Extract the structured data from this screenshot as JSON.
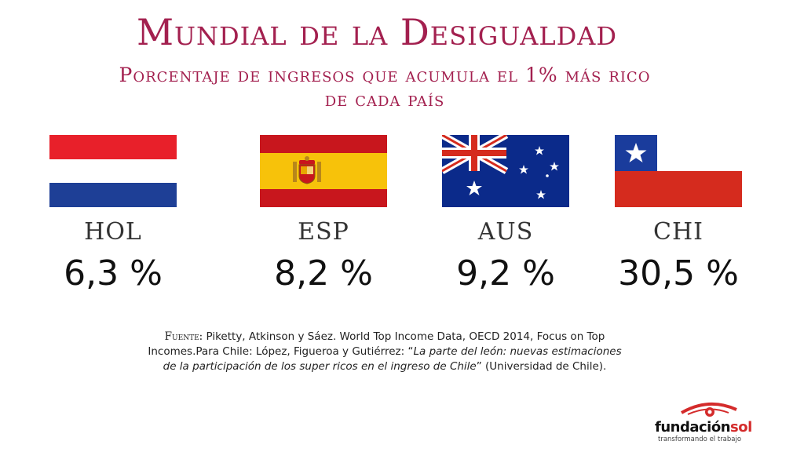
{
  "title": "Mundial de la Desigualdad",
  "subtitle_line1": "Porcentaje de ingresos que acumula el 1% más rico",
  "subtitle_line2": "de cada país",
  "countries": [
    {
      "code": "HOL",
      "value": "6,3 %",
      "flag_icon": "netherlands-flag-icon"
    },
    {
      "code": "ESP",
      "value": "8,2 %",
      "flag_icon": "spain-flag-icon"
    },
    {
      "code": "AUS",
      "value": "9,2 %",
      "flag_icon": "australia-flag-icon"
    },
    {
      "code": "CHI",
      "value": "30,5 %",
      "flag_icon": "chile-flag-icon"
    }
  ],
  "source": {
    "label": "Fuente:",
    "text1": " Piketty, Atkinson y Sáez. World Top Income Data, OECD 2014, Focus on Top Incomes.Para Chile: López, Figueroa y Gutiérrez: “",
    "italic": "La parte del león: nuevas estimaciones de la participación de los super ricos en el ingreso de Chile",
    "text2": "” (Universidad de Chile)."
  },
  "logo": {
    "word_black": "fundación",
    "word_red": "sol",
    "tagline": "transformando el trabajo"
  },
  "colors": {
    "title": "#a3204f",
    "netherlands_red": "#e8202a",
    "netherlands_blue": "#1e3f96",
    "spain_red": "#c8161d",
    "spain_yellow": "#f7c20a",
    "australia_blue": "#0b2a8a",
    "chile_blue": "#1a3c9c",
    "chile_red": "#d52b1e",
    "logo_red": "#d42b2b"
  }
}
